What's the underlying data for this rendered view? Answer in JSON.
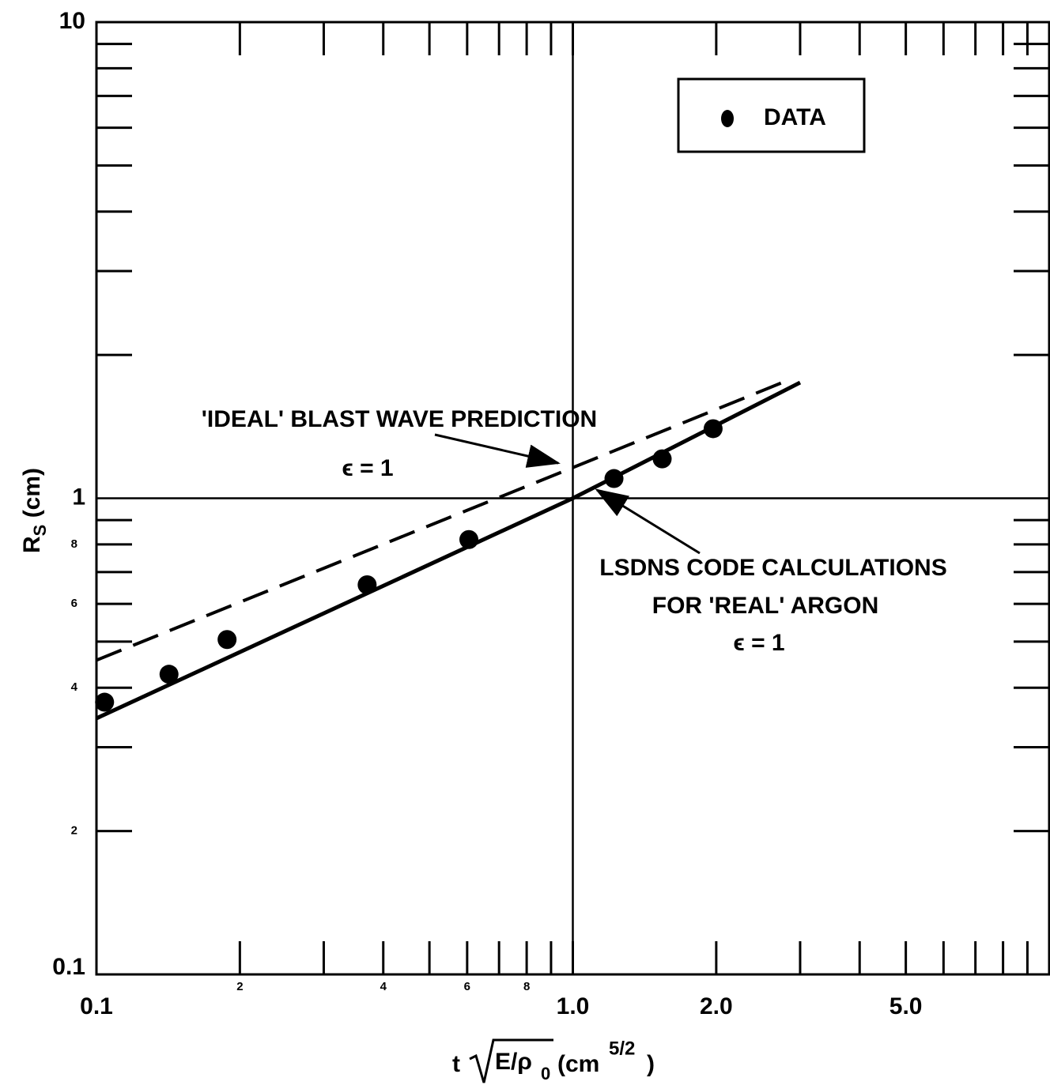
{
  "chart_data": {
    "type": "line",
    "xscale": "log",
    "yscale": "log",
    "xlim": [
      0.1,
      10
    ],
    "ylim": [
      0.1,
      10
    ],
    "xticks": [
      0.1,
      {
        "value": 0.2,
        "label": "2"
      },
      {
        "value": 0.4,
        "label": "4"
      },
      {
        "value": 0.6,
        "label": "6"
      },
      {
        "value": 0.8,
        "label": "8"
      },
      {
        "value": 1,
        "label": "1.0"
      },
      {
        "value": 2,
        "label": "2.0"
      },
      {
        "value": 5,
        "label": "5.0"
      }
    ],
    "xminor": [
      0.3,
      0.5,
      0.7,
      0.9,
      3,
      4,
      6,
      7,
      8,
      9
    ],
    "yticks": [
      10,
      1,
      {
        "value": 0.8,
        "label": "8"
      },
      {
        "value": 0.6,
        "label": "6"
      },
      {
        "value": 0.4,
        "label": "4"
      },
      {
        "value": 0.2,
        "label": "2"
      },
      0.1
    ],
    "yminor": [
      0.3,
      0.5,
      0.7,
      0.9,
      2,
      3,
      4,
      5,
      6,
      7,
      8,
      9
    ],
    "grid_lines_x": [
      1
    ],
    "grid_lines_y": [
      1
    ],
    "xlabel": {
      "prefix": "t",
      "radicand": "E/ρ",
      "sub": "0",
      "unit": "(cm",
      "sup": "5/2",
      "close": ")"
    },
    "ylabel": {
      "main": "R",
      "sub": "S",
      "unit": " (cm)"
    },
    "series": [
      {
        "name": "DATA",
        "color": "#000000",
        "style": "points",
        "x": [
          0.104,
          0.142,
          0.188,
          0.37,
          0.605,
          1.22,
          1.54,
          1.97
        ],
        "values": [
          0.373,
          0.427,
          0.505,
          0.658,
          0.819,
          1.1,
          1.21,
          1.4
        ]
      },
      {
        "color": "#000000",
        "style": "solid",
        "x": [
          0.1,
          1,
          3.0
        ],
        "values": [
          0.345,
          1.0,
          1.75
        ]
      },
      {
        "color": "#000000",
        "style": "dashed",
        "x": [
          0.1,
          1,
          2.87
        ],
        "values": [
          0.457,
          1.16,
          1.78
        ]
      }
    ],
    "annotations": [
      "'IDEAL' BLAST WAVE PREDICTION",
      "ϵ = 1",
      "LSDNS CODE CALCULATIONS",
      "FOR 'REAL' ARGON",
      "ϵ = 1"
    ]
  }
}
